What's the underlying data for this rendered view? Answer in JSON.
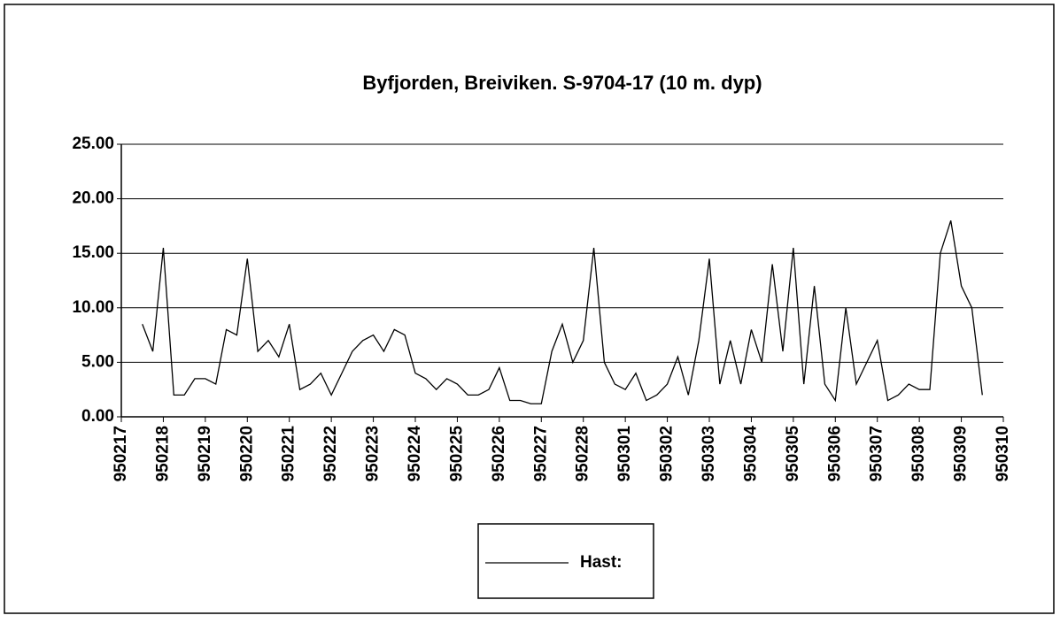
{
  "chart_data": {
    "type": "line",
    "title": "Byfjorden, Breiviken.    S-9704-17  (10 m. dyp)",
    "x": [
      0.5,
      0.75,
      1,
      1.25,
      1.5,
      1.75,
      2,
      2.25,
      2.5,
      2.75,
      3,
      3.25,
      3.5,
      3.75,
      4,
      4.25,
      4.5,
      4.75,
      5,
      5.25,
      5.5,
      5.75,
      6,
      6.25,
      6.5,
      6.75,
      7,
      7.25,
      7.5,
      7.75,
      8,
      8.25,
      8.5,
      8.75,
      9,
      9.25,
      9.5,
      9.75,
      10,
      10.25,
      10.5,
      10.75,
      11,
      11.25,
      11.5,
      11.75,
      12,
      12.25,
      12.5,
      12.75,
      13,
      13.25,
      13.5,
      13.75,
      14,
      14.25,
      14.5,
      14.75,
      15,
      15.25,
      15.5,
      15.75,
      16,
      16.25,
      16.5,
      16.75,
      17,
      17.25,
      17.5,
      17.75,
      18,
      18.25,
      18.5,
      18.75,
      19,
      19.25,
      19.5,
      19.75,
      20,
      20.25,
      20.5
    ],
    "series": [
      {
        "name": "Hast:",
        "color": "#000000",
        "values": [
          8.5,
          6,
          15.5,
          2,
          2,
          3.5,
          3.5,
          3,
          8,
          7.5,
          14.5,
          6,
          7,
          5.5,
          8.5,
          2.5,
          3,
          4,
          2,
          4,
          6,
          7,
          7.5,
          6,
          8,
          7.5,
          4,
          3.5,
          2.5,
          3.5,
          3,
          2,
          2,
          2.5,
          4.5,
          1.5,
          1.5,
          1.2,
          1.2,
          6,
          8.5,
          5,
          7,
          15.5,
          5,
          3,
          2.5,
          4,
          1.5,
          2,
          3,
          5.5,
          2,
          7,
          14.5,
          3,
          7,
          3,
          8,
          5,
          14,
          6,
          15.5,
          3,
          12,
          3,
          1.5,
          10,
          3,
          5,
          7,
          1.5,
          2,
          3,
          2.5,
          2.5,
          15,
          18,
          12,
          10,
          2
        ]
      }
    ],
    "xlim": [
      0,
      21
    ],
    "xticks": [
      {
        "value": 0,
        "label": "950217"
      },
      {
        "value": 1,
        "label": "950218"
      },
      {
        "value": 2,
        "label": "950219"
      },
      {
        "value": 3,
        "label": "950220"
      },
      {
        "value": 4,
        "label": "950221"
      },
      {
        "value": 5,
        "label": "950222"
      },
      {
        "value": 6,
        "label": "950223"
      },
      {
        "value": 7,
        "label": "950224"
      },
      {
        "value": 8,
        "label": "950225"
      },
      {
        "value": 9,
        "label": "950226"
      },
      {
        "value": 10,
        "label": "950227"
      },
      {
        "value": 11,
        "label": "950228"
      },
      {
        "value": 12,
        "label": "950301"
      },
      {
        "value": 13,
        "label": "950302"
      },
      {
        "value": 14,
        "label": "950303"
      },
      {
        "value": 15,
        "label": "950304"
      },
      {
        "value": 16,
        "label": "950305"
      },
      {
        "value": 17,
        "label": "950306"
      },
      {
        "value": 18,
        "label": "950307"
      },
      {
        "value": 19,
        "label": "950308"
      },
      {
        "value": 20,
        "label": "950309"
      },
      {
        "value": 21,
        "label": "950310"
      }
    ],
    "ylim": [
      0,
      25
    ],
    "yticks": [
      {
        "value": 0,
        "label": "0.00"
      },
      {
        "value": 5,
        "label": "5.00"
      },
      {
        "value": 10,
        "label": "10.00"
      },
      {
        "value": 15,
        "label": "15.00"
      },
      {
        "value": 20,
        "label": "20.00"
      },
      {
        "value": 25,
        "label": "25.00"
      }
    ],
    "grid": true,
    "legend": "bottom"
  }
}
